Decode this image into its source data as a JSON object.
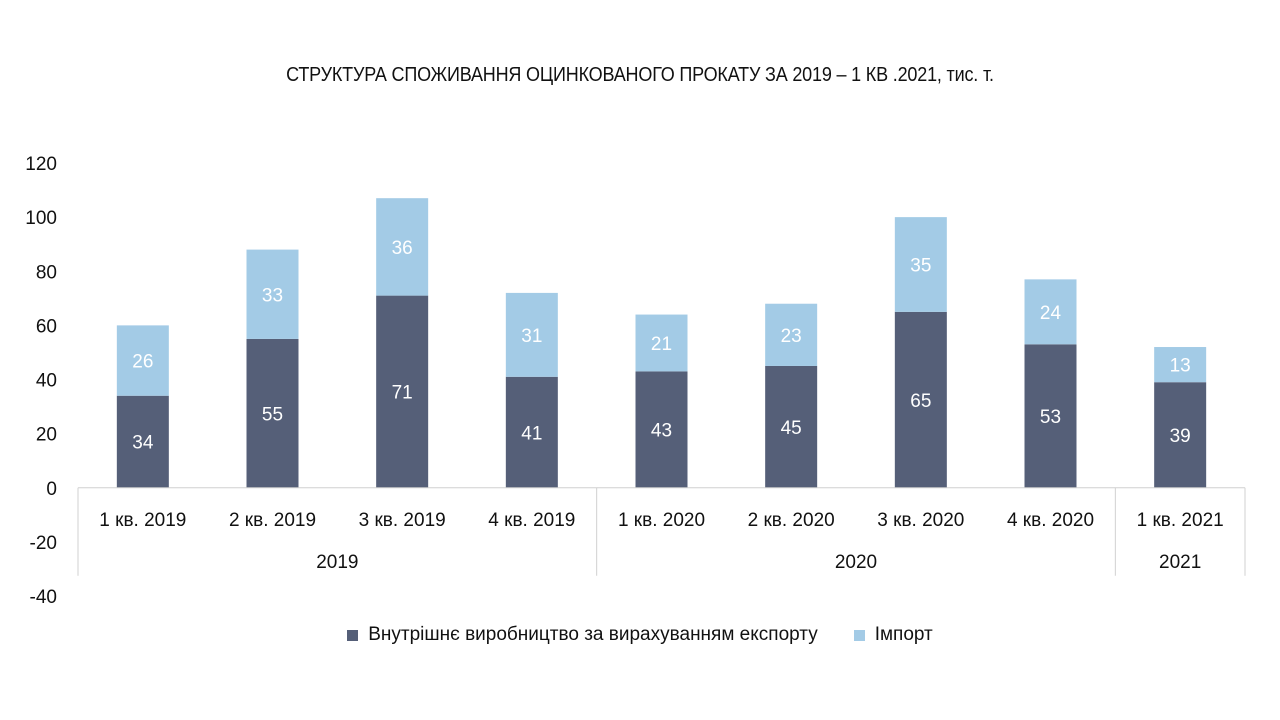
{
  "chart_data": {
    "type": "bar",
    "stacked": true,
    "title": "СТРУКТУРА СПОЖИВАННЯ ОЦИНКОВАНОГО ПРОКАТУ ЗА 2019 – 1 КВ .2021, тис. т.",
    "categories": [
      "1 кв. 2019",
      "2 кв. 2019",
      "3 кв. 2019",
      "4 кв. 2019",
      "1 кв. 2020",
      "2 кв. 2020",
      "3 кв. 2020",
      "4 кв. 2020",
      "1 кв. 2021"
    ],
    "groups": [
      {
        "label": "2019",
        "count": 4
      },
      {
        "label": "2020",
        "count": 4
      },
      {
        "label": "2021",
        "count": 1
      }
    ],
    "series": [
      {
        "name": "Внутрішнє виробництво за вирахуванням експорту",
        "color": "#555f78",
        "values": [
          34,
          55,
          71,
          41,
          43,
          45,
          65,
          53,
          39
        ]
      },
      {
        "name": "Імпорт",
        "color": "#a3cbe6",
        "values": [
          26,
          33,
          36,
          31,
          21,
          23,
          35,
          24,
          13
        ]
      }
    ],
    "ylim": [
      -40,
      120
    ],
    "yticks": [
      "-40",
      "-20",
      "0",
      "20",
      "40",
      "60",
      "80",
      "100",
      "120"
    ],
    "grid": false,
    "legend_position": "bottom"
  }
}
